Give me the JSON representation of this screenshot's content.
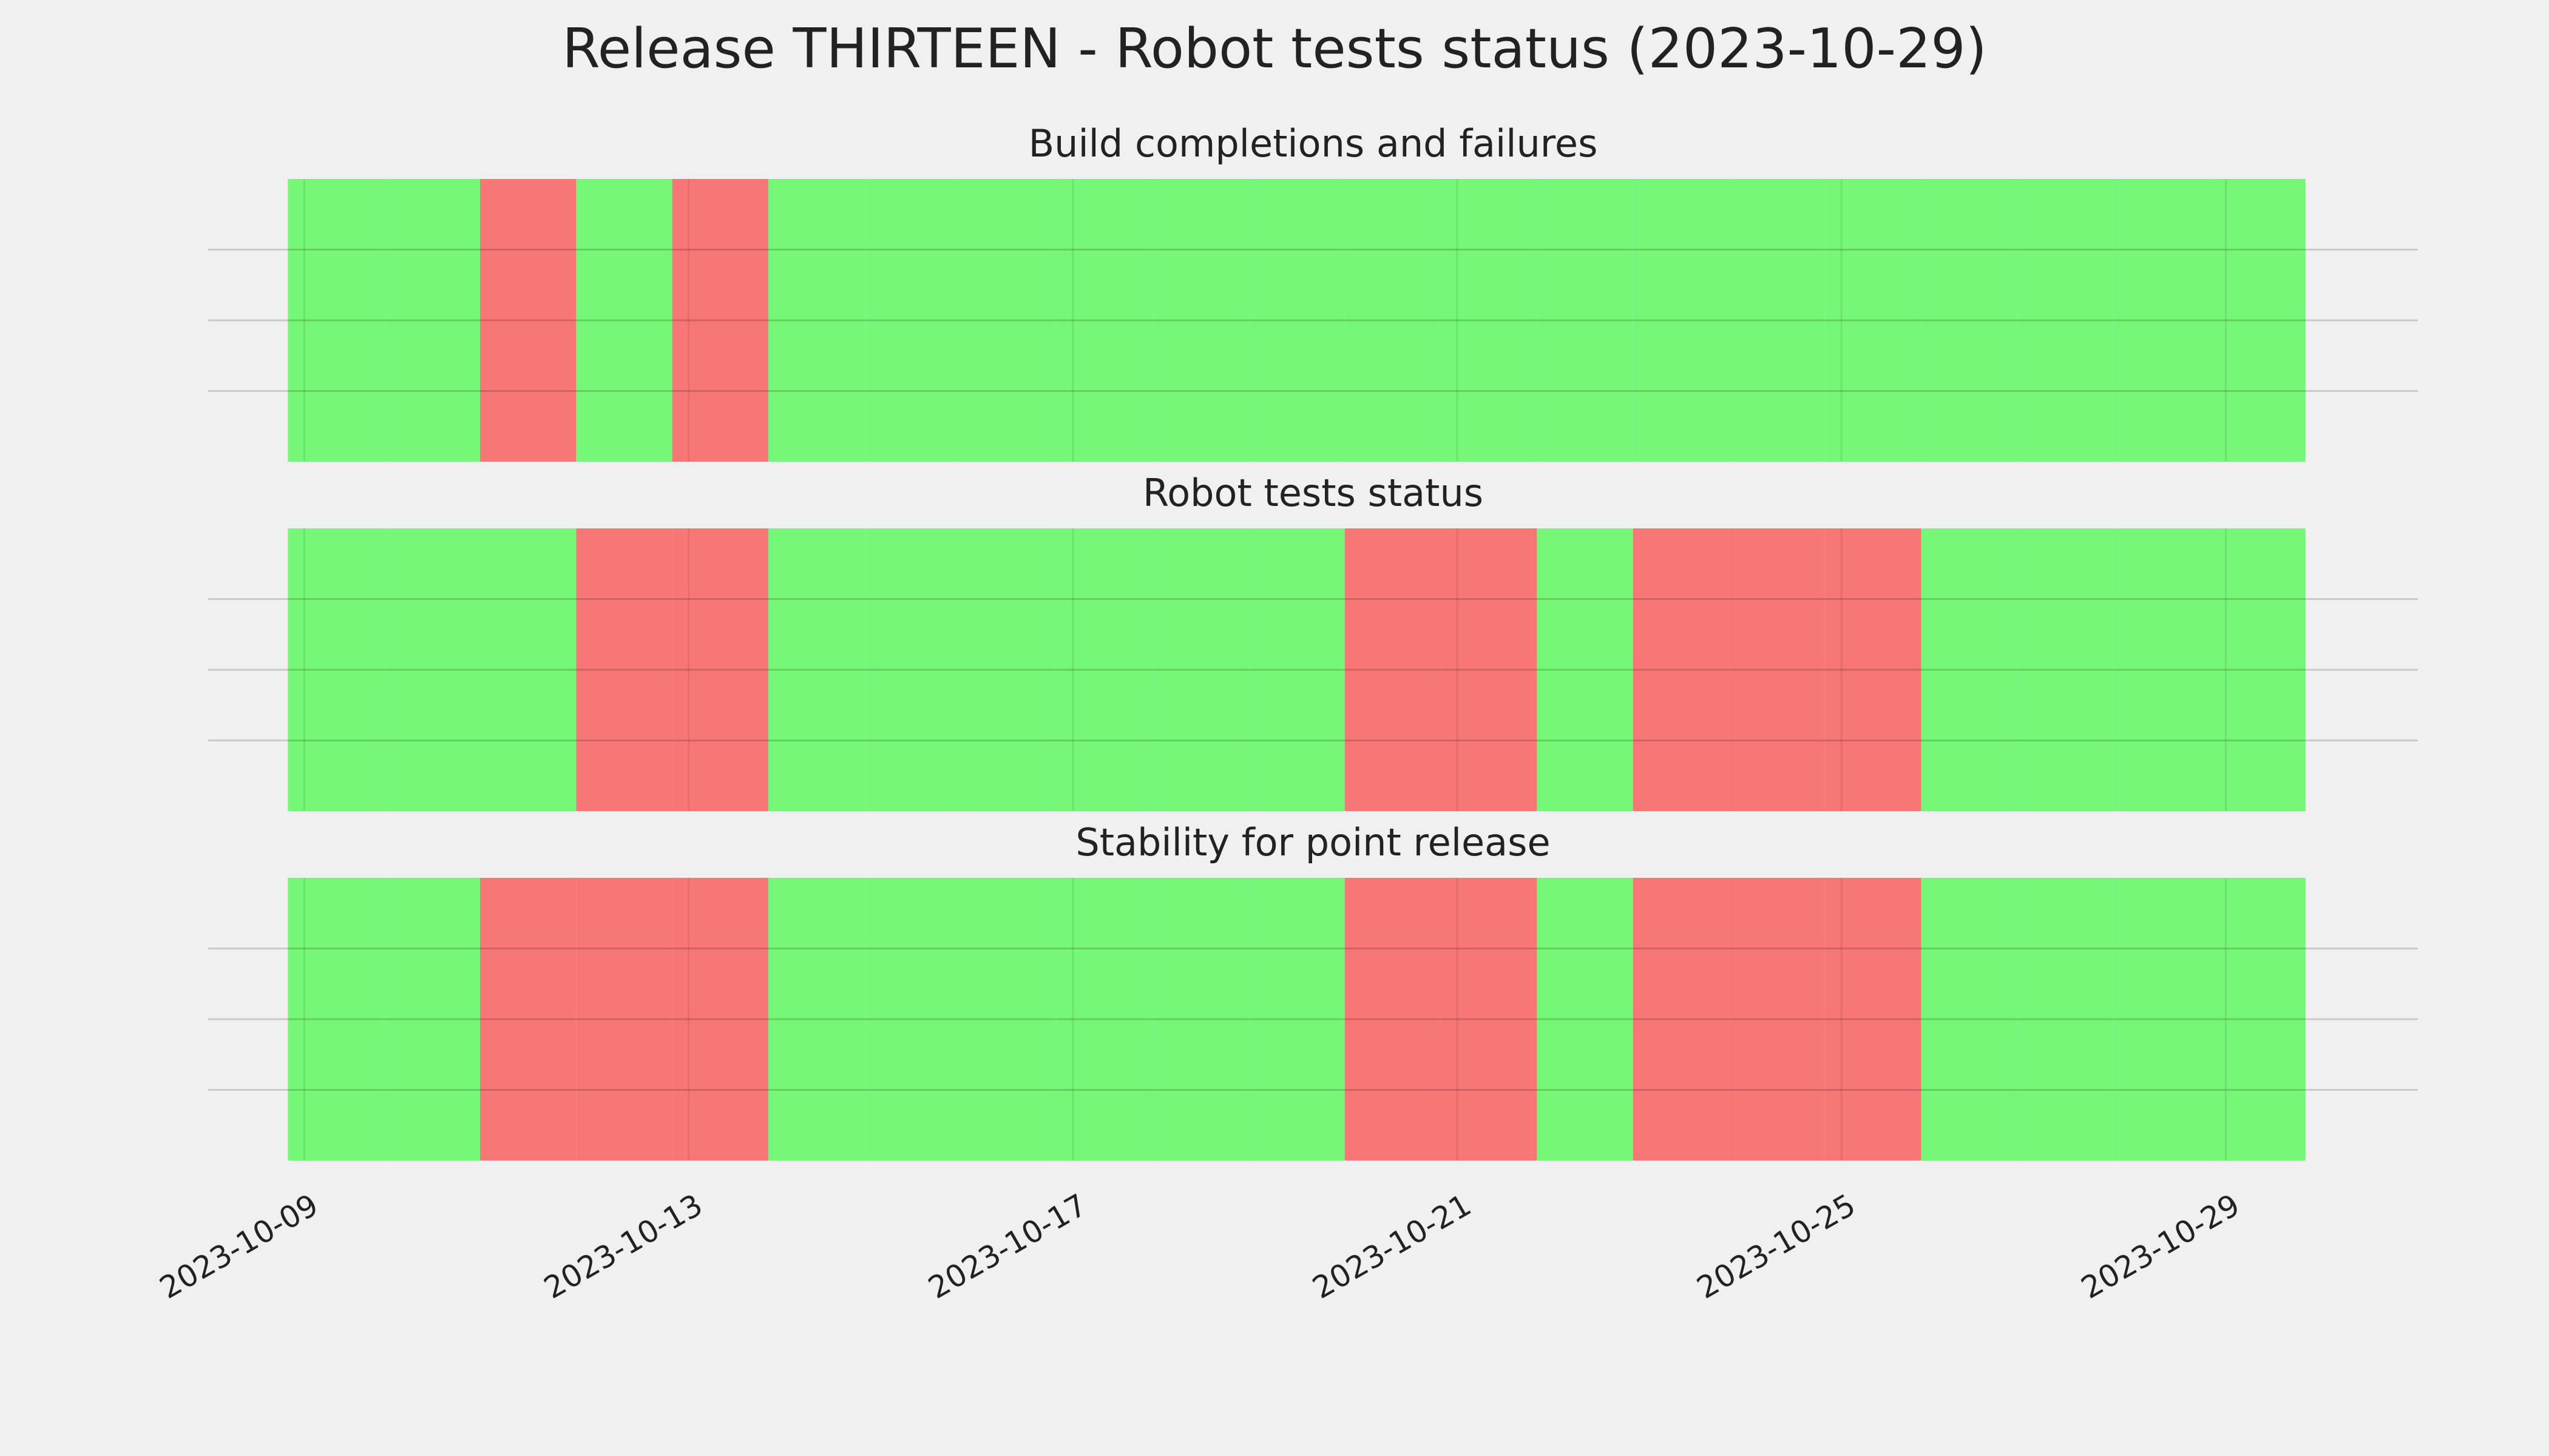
{
  "title": "Release THIRTEEN - Robot tests status (2023-10-29)",
  "chart_data": [
    {
      "type": "bar",
      "title": "Build completions and failures",
      "x": [
        "2023-10-09",
        "2023-10-10",
        "2023-10-11",
        "2023-10-12",
        "2023-10-13",
        "2023-10-14",
        "2023-10-15",
        "2023-10-16",
        "2023-10-17",
        "2023-10-18",
        "2023-10-19",
        "2023-10-20",
        "2023-10-21",
        "2023-10-22",
        "2023-10-23",
        "2023-10-24",
        "2023-10-25",
        "2023-10-26",
        "2023-10-27",
        "2023-10-28",
        "2023-10-29"
      ],
      "series": [
        {
          "color": "#77f777",
          "values": [
            1,
            1,
            null,
            1,
            null,
            1,
            1,
            1,
            1,
            1,
            1,
            1,
            1,
            1,
            1,
            1,
            1,
            1,
            1,
            1,
            1
          ]
        },
        {
          "color": "#f77777",
          "values": [
            null,
            null,
            1,
            null,
            1,
            null,
            null,
            null,
            null,
            null,
            null,
            null,
            null,
            null,
            null,
            null,
            null,
            null,
            null,
            null,
            null
          ]
        }
      ],
      "xlim": [
        "2023-10-08",
        "2023-10-31"
      ],
      "xticks": [
        "2023-10-09",
        "2023-10-13",
        "2023-10-17",
        "2023-10-21",
        "2023-10-25",
        "2023-10-29"
      ],
      "ylim": [
        0,
        1
      ],
      "yticks": [
        0.25,
        0.5,
        0.75
      ],
      "grid": true
    },
    {
      "type": "bar",
      "title": "Robot tests status",
      "x": [
        "2023-10-09",
        "2023-10-10",
        "2023-10-11",
        "2023-10-12",
        "2023-10-13",
        "2023-10-14",
        "2023-10-15",
        "2023-10-16",
        "2023-10-17",
        "2023-10-18",
        "2023-10-19",
        "2023-10-20",
        "2023-10-21",
        "2023-10-22",
        "2023-10-23",
        "2023-10-24",
        "2023-10-25",
        "2023-10-26",
        "2023-10-27",
        "2023-10-28",
        "2023-10-29"
      ],
      "series": [
        {
          "color": "#77f777",
          "values": [
            1,
            1,
            1,
            null,
            null,
            1,
            1,
            1,
            1,
            1,
            1,
            null,
            null,
            1,
            null,
            null,
            null,
            1,
            1,
            1,
            1
          ]
        },
        {
          "color": "#f77777",
          "values": [
            null,
            null,
            null,
            1,
            1,
            null,
            null,
            null,
            null,
            null,
            null,
            1,
            1,
            null,
            1,
            1,
            1,
            null,
            null,
            null,
            null
          ]
        }
      ],
      "xlim": [
        "2023-10-08",
        "2023-10-31"
      ],
      "xticks": [
        "2023-10-09",
        "2023-10-13",
        "2023-10-17",
        "2023-10-21",
        "2023-10-25",
        "2023-10-29"
      ],
      "ylim": [
        0,
        1
      ],
      "yticks": [
        0.25,
        0.5,
        0.75
      ],
      "grid": true
    },
    {
      "type": "bar",
      "title": "Stability for point release",
      "x": [
        "2023-10-09",
        "2023-10-10",
        "2023-10-11",
        "2023-10-12",
        "2023-10-13",
        "2023-10-14",
        "2023-10-15",
        "2023-10-16",
        "2023-10-17",
        "2023-10-18",
        "2023-10-19",
        "2023-10-20",
        "2023-10-21",
        "2023-10-22",
        "2023-10-23",
        "2023-10-24",
        "2023-10-25",
        "2023-10-26",
        "2023-10-27",
        "2023-10-28",
        "2023-10-29"
      ],
      "series": [
        {
          "color": "#77f777",
          "values": [
            1,
            1,
            null,
            null,
            null,
            1,
            1,
            1,
            1,
            1,
            1,
            null,
            null,
            1,
            null,
            null,
            null,
            1,
            1,
            1,
            1
          ]
        },
        {
          "color": "#f77777",
          "values": [
            null,
            null,
            1,
            1,
            1,
            null,
            null,
            null,
            null,
            null,
            null,
            1,
            1,
            null,
            1,
            1,
            1,
            null,
            null,
            null,
            null
          ]
        }
      ],
      "xlim": [
        "2023-10-08",
        "2023-10-31"
      ],
      "xticks": [
        "2023-10-09",
        "2023-10-13",
        "2023-10-17",
        "2023-10-21",
        "2023-10-25",
        "2023-10-29"
      ],
      "ylim": [
        0,
        1
      ],
      "yticks": [
        0.25,
        0.5,
        0.75
      ],
      "grid": true
    }
  ]
}
